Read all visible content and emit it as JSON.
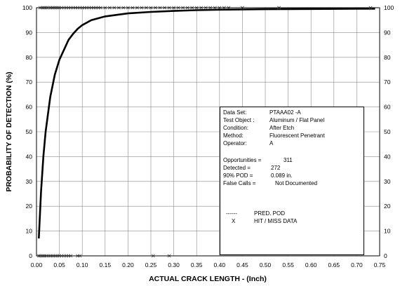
{
  "chart_data": {
    "type": "line",
    "title": "",
    "xlabel": "ACTUAL CRACK LENGTH - (Inch)",
    "ylabel": "PROBABILITY OF DETECTION (%)",
    "xlim": [
      0.0,
      0.75
    ],
    "ylim": [
      0,
      100
    ],
    "x_ticks": [
      "0.00",
      "0.05",
      "0.10",
      "0.15",
      "0.20",
      "0.25",
      "0.30",
      "0.35",
      "0.40",
      "0.45",
      "0.50",
      "0.55",
      "0.60",
      "0.65",
      "0.70",
      "0.75"
    ],
    "y_ticks": [
      "0",
      "10",
      "20",
      "30",
      "40",
      "50",
      "60",
      "70",
      "80",
      "90",
      "100"
    ],
    "y_ticks_right": [
      "0",
      "10",
      "20",
      "30",
      "40",
      "50",
      "60",
      "70",
      "80",
      "90",
      "100"
    ],
    "grid": true,
    "series": [
      {
        "name": "PRED. POD",
        "x": [
          0.005,
          0.01,
          0.015,
          0.02,
          0.03,
          0.04,
          0.05,
          0.06,
          0.07,
          0.08,
          0.09,
          0.1,
          0.12,
          0.15,
          0.2,
          0.25,
          0.3,
          0.35,
          0.4,
          0.5,
          0.6,
          0.7,
          0.74
        ],
        "y": [
          7,
          26,
          40,
          50,
          64,
          73,
          79,
          83,
          87,
          89.5,
          91.5,
          93,
          95,
          96.5,
          97.7,
          98.3,
          98.7,
          99,
          99.2,
          99.4,
          99.5,
          99.6,
          99.6
        ]
      },
      {
        "name": "HIT / MISS DATA",
        "hits": [
          0.008,
          0.012,
          0.015,
          0.018,
          0.022,
          0.025,
          0.03,
          0.033,
          0.036,
          0.04,
          0.043,
          0.047,
          0.05,
          0.055,
          0.06,
          0.065,
          0.07,
          0.075,
          0.08,
          0.085,
          0.09,
          0.095,
          0.1,
          0.105,
          0.11,
          0.115,
          0.12,
          0.125,
          0.13,
          0.135,
          0.14,
          0.15,
          0.16,
          0.17,
          0.18,
          0.19,
          0.2,
          0.21,
          0.22,
          0.23,
          0.24,
          0.25,
          0.26,
          0.27,
          0.28,
          0.29,
          0.3,
          0.31,
          0.32,
          0.33,
          0.34,
          0.35,
          0.36,
          0.37,
          0.38,
          0.39,
          0.4,
          0.41,
          0.42,
          0.45,
          0.53,
          0.73
        ],
        "misses": [
          0.005,
          0.008,
          0.012,
          0.015,
          0.018,
          0.022,
          0.026,
          0.03,
          0.034,
          0.038,
          0.042,
          0.046,
          0.05,
          0.055,
          0.06,
          0.065,
          0.07,
          0.075,
          0.09,
          0.095,
          0.255,
          0.29
        ]
      }
    ],
    "info": {
      "rows": [
        {
          "label": "Data Set:",
          "value": "PTAAA02 -A"
        },
        {
          "label": "Test Object :",
          "value": "Aluminum / Flat Panel"
        },
        {
          "label": "Condition:",
          "value": "After Etch"
        },
        {
          "label": "Method:",
          "value": "Fluorescent Penetrant"
        },
        {
          "label": "Operator:",
          "value": "A"
        }
      ],
      "stats": [
        {
          "label": "Opportunities =",
          "value": "311"
        },
        {
          "label": "Detected =",
          "value": "272"
        },
        {
          "label": "90% POD =",
          "value": "0.089 in."
        },
        {
          "label": "False Calls =",
          "value": "Not Documented"
        }
      ],
      "legend": [
        {
          "symbol": "------",
          "label": "PRED. POD"
        },
        {
          "symbol": "X",
          "label": "HIT / MISS DATA"
        }
      ]
    }
  }
}
